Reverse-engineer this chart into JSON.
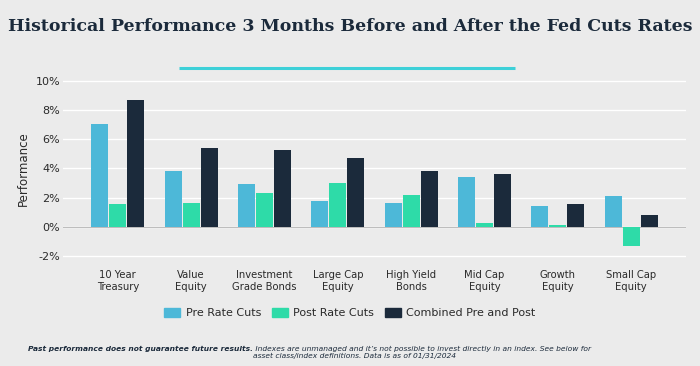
{
  "title": "Historical Performance 3 Months Before and After the Fed Cuts Rates",
  "ylabel": "Performance",
  "categories": [
    "10 Year\nTreasury",
    "Value\nEquity",
    "Investment\nGrade Bonds",
    "Large Cap\nEquity",
    "High Yield\nBonds",
    "Mid Cap\nEquity",
    "Growth\nEquity",
    "Small Cap\nEquity"
  ],
  "pre_rate_cuts": [
    7.0,
    3.8,
    2.9,
    1.8,
    1.65,
    3.4,
    1.4,
    2.1
  ],
  "post_rate_cuts": [
    1.55,
    1.6,
    2.3,
    3.0,
    2.2,
    0.3,
    0.1,
    -1.3
  ],
  "combined_pre_post": [
    8.65,
    5.4,
    5.25,
    4.7,
    3.85,
    3.6,
    1.55,
    0.8
  ],
  "color_pre": "#4db8d8",
  "color_post": "#2edba8",
  "color_combined": "#1b2a3b",
  "ylim": [
    -2.5,
    10.5
  ],
  "yticks": [
    -2,
    0,
    2,
    4,
    6,
    8,
    10
  ],
  "background_color": "#ebebeb",
  "footnote_bold": "Past performance does not guarantee future results.",
  "footnote_normal": " Indexes are unmanaged and it’s not possible to invest directly in an index. See below for\nasset class/index definitions. Data is as of 01/31/2024",
  "legend_labels": [
    "Pre Rate Cuts",
    "Post Rate Cuts",
    "Combined Pre and Post"
  ],
  "underline_xstart": 0.255,
  "underline_xend": 0.735,
  "underline_color": "#3dd0d8"
}
